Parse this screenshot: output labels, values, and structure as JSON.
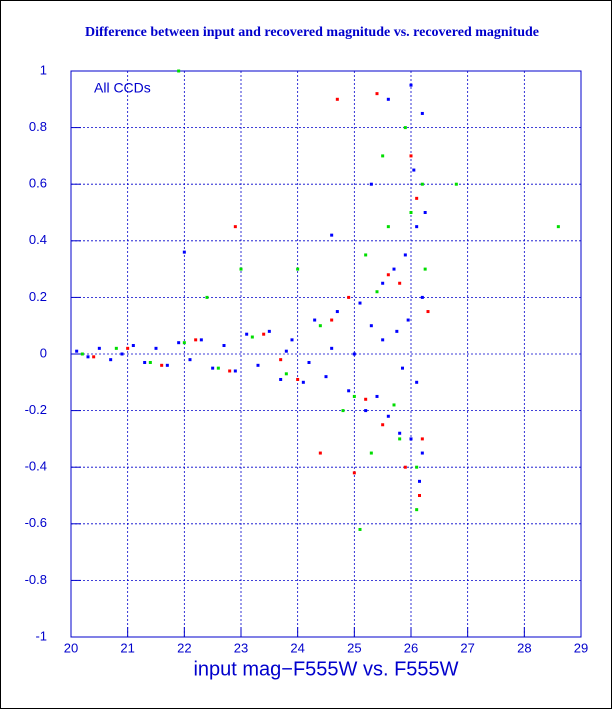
{
  "chart_data": {
    "type": "scatter",
    "title": "Difference between input and recovered magnitude vs. recovered magnitude",
    "x_label": "input mag−F555W vs. F555W",
    "annotation": "All CCDs",
    "xlim": [
      20,
      29
    ],
    "ylim": [
      -1,
      1
    ],
    "xticks": [
      20,
      21,
      22,
      23,
      24,
      25,
      26,
      27,
      28,
      29
    ],
    "yticks": [
      -1,
      -0.8,
      -0.6,
      -0.4,
      -0.2,
      0,
      0.2,
      0.4,
      0.6,
      0.8,
      1
    ],
    "grid": true,
    "series": [
      {
        "color": "#ff0000",
        "x": [
          20.4,
          21.0,
          21.6,
          22.2,
          22.8,
          23.4,
          24.0,
          24.6,
          25.2,
          25.6,
          25.9,
          26.1,
          26.2,
          25.8,
          25.5,
          24.9,
          26.0,
          25.4,
          24.7,
          23.7,
          22.9,
          26.3,
          25.0,
          26.15,
          24.4
        ],
        "y": [
          -0.01,
          0.02,
          -0.04,
          0.05,
          -0.06,
          0.07,
          -0.09,
          0.12,
          -0.16,
          0.28,
          -0.4,
          0.55,
          -0.3,
          0.25,
          -0.25,
          0.2,
          0.7,
          0.92,
          0.9,
          -0.02,
          0.45,
          0.15,
          -0.42,
          -0.5,
          -0.35
        ]
      },
      {
        "color": "#00dd00",
        "x": [
          20.2,
          20.8,
          21.4,
          22.0,
          22.6,
          23.2,
          23.8,
          24.4,
          25.0,
          25.4,
          25.8,
          26.0,
          26.2,
          25.9,
          26.1,
          25.2,
          24.8,
          25.6,
          25.7,
          26.25,
          21.9,
          23.0,
          22.4,
          25.1,
          26.1,
          24.0,
          25.5,
          28.6,
          26.8,
          25.3
        ],
        "y": [
          0.0,
          0.02,
          -0.03,
          0.04,
          -0.05,
          0.06,
          -0.07,
          0.1,
          -0.15,
          0.22,
          -0.3,
          0.5,
          0.6,
          0.8,
          -0.4,
          0.35,
          -0.2,
          0.45,
          -0.18,
          0.3,
          1.0,
          0.3,
          0.2,
          -0.62,
          -0.55,
          0.3,
          0.7,
          0.45,
          0.6,
          -0.35
        ]
      },
      {
        "color": "#0000ff",
        "x": [
          20.1,
          20.3,
          20.5,
          20.7,
          20.9,
          21.1,
          21.3,
          21.5,
          21.7,
          21.9,
          22.1,
          22.3,
          22.5,
          22.7,
          22.9,
          23.1,
          23.3,
          23.5,
          23.7,
          23.9,
          24.1,
          24.3,
          24.5,
          24.7,
          24.9,
          25.1,
          25.2,
          25.3,
          25.4,
          25.5,
          25.6,
          25.7,
          25.8,
          25.9,
          26.0,
          26.1,
          26.2,
          26.25,
          26.05,
          26.15,
          25.95,
          25.85,
          25.75,
          26.2,
          26.1,
          24.6,
          24.2,
          23.8,
          25.0,
          25.5,
          22.0,
          26.0,
          25.6,
          26.2,
          24.6,
          25.3
        ],
        "y": [
          0.01,
          -0.01,
          0.02,
          -0.02,
          0.0,
          0.03,
          -0.03,
          0.02,
          -0.04,
          0.04,
          -0.02,
          0.05,
          -0.05,
          0.03,
          -0.06,
          0.07,
          -0.04,
          0.08,
          -0.09,
          0.05,
          -0.1,
          0.12,
          -0.08,
          0.15,
          -0.13,
          0.18,
          -0.2,
          0.1,
          -0.15,
          0.25,
          -0.22,
          0.3,
          -0.28,
          0.35,
          -0.3,
          0.45,
          -0.35,
          0.5,
          0.65,
          -0.45,
          0.12,
          -0.05,
          0.08,
          0.2,
          -0.1,
          0.02,
          -0.03,
          0.01,
          0.0,
          0.05,
          0.36,
          0.95,
          0.9,
          0.85,
          0.42,
          0.6
        ]
      }
    ]
  }
}
